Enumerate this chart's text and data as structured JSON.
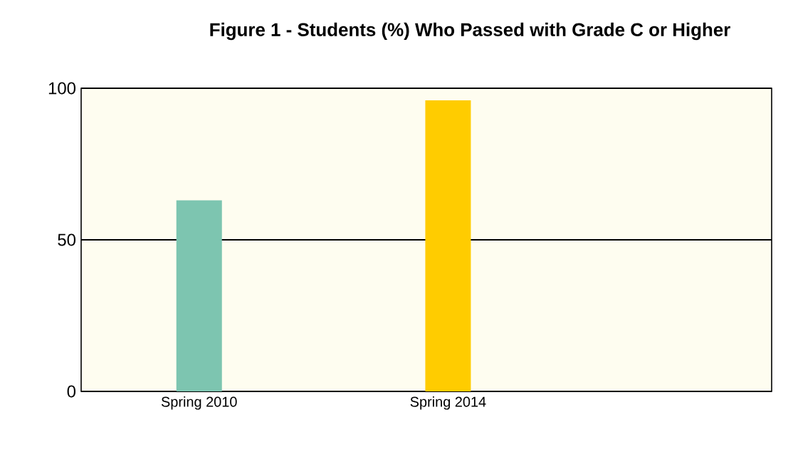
{
  "chart_data": {
    "type": "bar",
    "title": "Figure 1 - Students (%) Who Passed with Grade C or Higher",
    "categories": [
      "Spring 2010",
      "Spring 2014"
    ],
    "values": [
      63,
      96
    ],
    "colors": [
      "#7dc5b0",
      "#ffcc00"
    ],
    "ylim": [
      0,
      100
    ],
    "yticks": [
      0,
      50,
      100
    ],
    "grid": "y"
  }
}
